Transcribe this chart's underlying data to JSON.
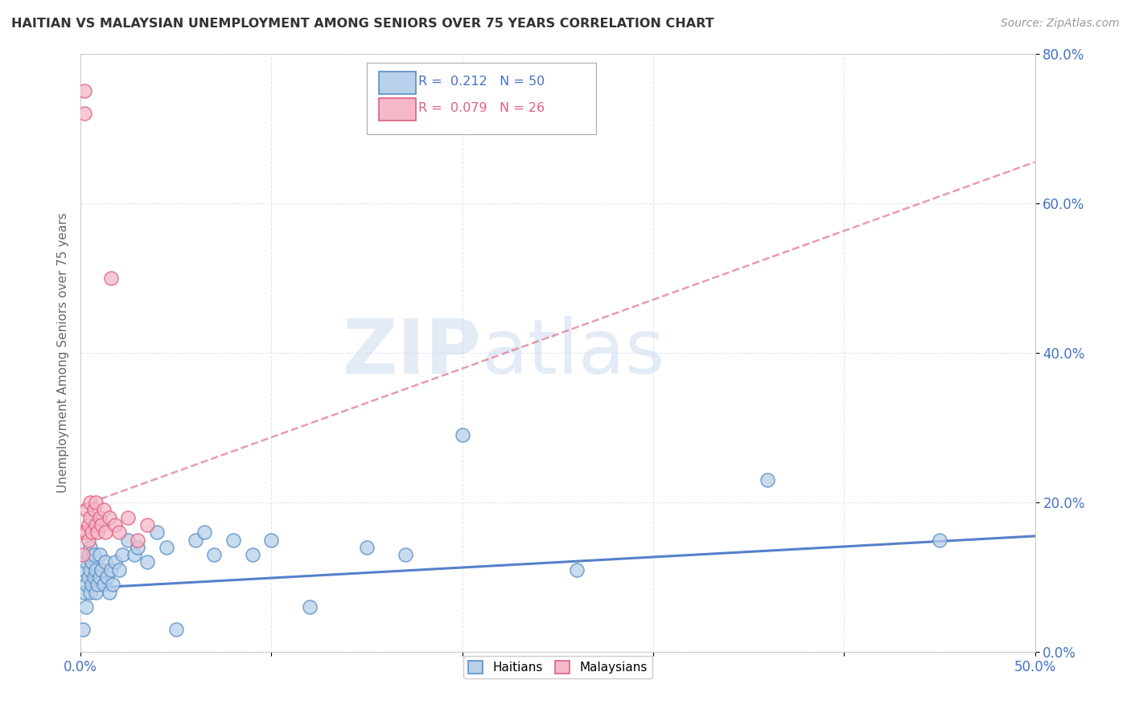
{
  "title": "HAITIAN VS MALAYSIAN UNEMPLOYMENT AMONG SENIORS OVER 75 YEARS CORRELATION CHART",
  "source": "Source: ZipAtlas.com",
  "ylabel": "Unemployment Among Seniors over 75 years",
  "xlim": [
    0.0,
    0.5
  ],
  "ylim": [
    0.0,
    0.8
  ],
  "xticks": [
    0.0,
    0.1,
    0.2,
    0.3,
    0.4,
    0.5
  ],
  "yticks": [
    0.0,
    0.2,
    0.4,
    0.6,
    0.8
  ],
  "xtick_labels": [
    "0.0%",
    "",
    "",
    "",
    "",
    "50.0%"
  ],
  "ytick_labels": [
    "0.0%",
    "20.0%",
    "40.0%",
    "60.0%",
    "80.0%"
  ],
  "haitian_color": "#b8d0ea",
  "malaysian_color": "#f4b8c8",
  "haitian_edge_color": "#5a8fc4",
  "malaysian_edge_color": "#e06080",
  "haitian_line_color": "#4472c4",
  "malaysian_line_color": "#e07090",
  "haitian_R": 0.212,
  "haitian_N": 50,
  "malaysian_R": 0.079,
  "malaysian_N": 26,
  "watermark_zip": "ZIP",
  "watermark_atlas": "atlas",
  "watermark_color": "#c8d8ee",
  "haitian_x": [
    0.001,
    0.002,
    0.002,
    0.003,
    0.003,
    0.003,
    0.004,
    0.004,
    0.005,
    0.005,
    0.005,
    0.006,
    0.006,
    0.007,
    0.007,
    0.008,
    0.008,
    0.009,
    0.01,
    0.01,
    0.011,
    0.012,
    0.013,
    0.014,
    0.015,
    0.016,
    0.017,
    0.018,
    0.02,
    0.022,
    0.025,
    0.028,
    0.03,
    0.035,
    0.04,
    0.045,
    0.05,
    0.06,
    0.065,
    0.07,
    0.08,
    0.09,
    0.1,
    0.12,
    0.15,
    0.17,
    0.2,
    0.26,
    0.36,
    0.45
  ],
  "haitian_y": [
    0.03,
    0.08,
    0.11,
    0.09,
    0.06,
    0.12,
    0.1,
    0.13,
    0.08,
    0.11,
    0.14,
    0.09,
    0.12,
    0.1,
    0.13,
    0.08,
    0.11,
    0.09,
    0.1,
    0.13,
    0.11,
    0.09,
    0.12,
    0.1,
    0.08,
    0.11,
    0.09,
    0.12,
    0.11,
    0.13,
    0.15,
    0.13,
    0.14,
    0.12,
    0.16,
    0.14,
    0.03,
    0.15,
    0.16,
    0.13,
    0.15,
    0.13,
    0.15,
    0.06,
    0.14,
    0.13,
    0.29,
    0.11,
    0.23,
    0.15
  ],
  "malaysian_x": [
    0.001,
    0.001,
    0.002,
    0.002,
    0.003,
    0.003,
    0.004,
    0.004,
    0.005,
    0.005,
    0.006,
    0.007,
    0.008,
    0.008,
    0.009,
    0.01,
    0.011,
    0.012,
    0.013,
    0.015,
    0.016,
    0.018,
    0.02,
    0.025,
    0.03,
    0.035
  ],
  "malaysian_y": [
    0.13,
    0.16,
    0.72,
    0.75,
    0.16,
    0.19,
    0.17,
    0.15,
    0.2,
    0.18,
    0.16,
    0.19,
    0.17,
    0.2,
    0.16,
    0.18,
    0.17,
    0.19,
    0.16,
    0.18,
    0.5,
    0.17,
    0.16,
    0.18,
    0.15,
    0.17
  ],
  "haitian_trendline_x": [
    0.0,
    0.5
  ],
  "haitian_trendline_y": [
    0.085,
    0.155
  ],
  "malaysian_trendline_x": [
    0.0,
    0.5
  ],
  "malaysian_trendline_y": [
    0.195,
    0.655
  ]
}
